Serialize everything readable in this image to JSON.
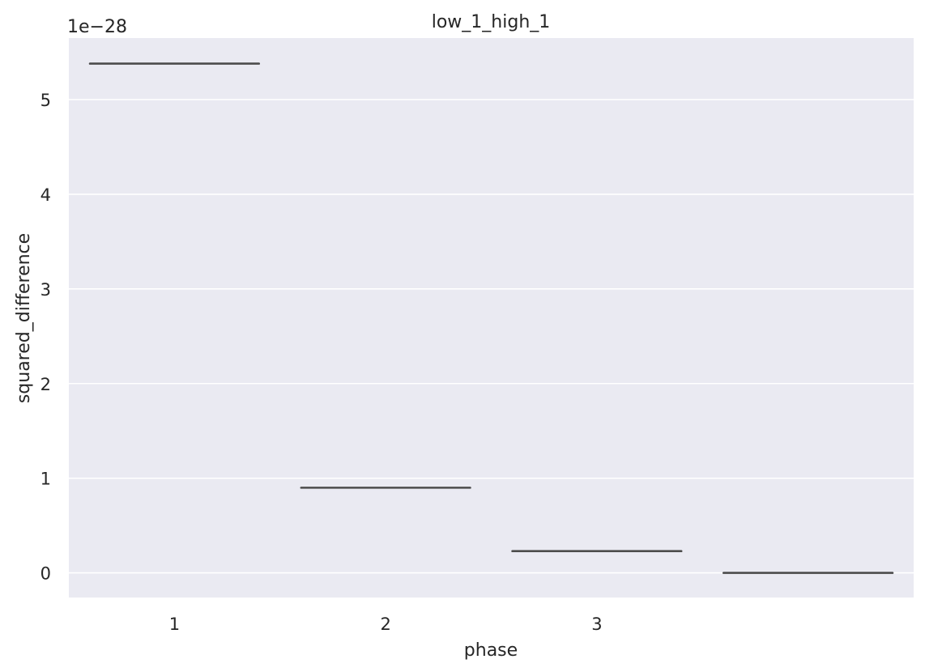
{
  "chart_data": {
    "type": "box",
    "title": "low_1_high_1",
    "xlabel": "phase",
    "ylabel": "squared_difference",
    "y_offset_label": "1e−28",
    "y_scale_exponent": -28,
    "categories": [
      "1",
      "2",
      "3",
      ""
    ],
    "values": [
      5.38,
      0.9,
      0.23,
      0.0
    ],
    "ylim": [
      -0.26,
      5.65
    ],
    "yticks": [
      0,
      1,
      2,
      3,
      4,
      5
    ],
    "grid": true,
    "legend": "none",
    "colors": {
      "plot_background": "#eaeaf2",
      "grid": "#ffffff",
      "median_line": "#4c4c4c",
      "text": "#262626"
    }
  }
}
